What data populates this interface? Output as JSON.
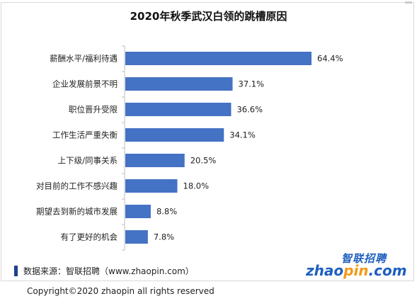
{
  "title": "2020年秋季武汉白领的跳槽原因",
  "chart_data": {
    "type": "bar",
    "orientation": "horizontal",
    "title": "2020年秋季武汉白领的跳槽原因",
    "categories": [
      "薪酬水平/福利待遇",
      "企业发展前景不明",
      "职位晋升受限",
      "工作生活严重失衡",
      "上下级/同事关系",
      "对目前的工作不感兴趣",
      "期望去到新的城市发展",
      "有了更好的机会"
    ],
    "values": [
      64.4,
      37.1,
      36.6,
      34.1,
      20.5,
      18.0,
      8.8,
      7.8
    ],
    "value_labels": [
      "64.4%",
      "37.1%",
      "36.6%",
      "34.1%",
      "20.5%",
      "18.0%",
      "8.8%",
      "7.8%"
    ],
    "xlim": [
      0,
      70
    ],
    "unit": "%",
    "bar_color": "#4472c4",
    "grid": false,
    "legend": "none"
  },
  "source": "数据来源：智联招聘（www.zhaopin.com）",
  "logo": {
    "cn": "智联招聘",
    "en_a": "zhao",
    "en_b": "pin",
    "en_c": ".com"
  },
  "copyright": "Copyright©2020 zhaopin all rights reserved"
}
